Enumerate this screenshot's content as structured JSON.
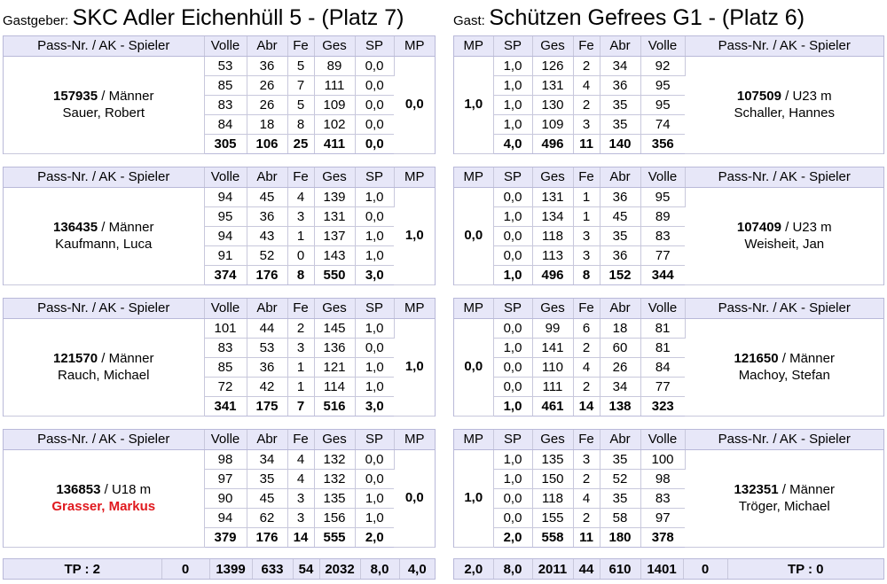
{
  "home": {
    "prefix": "Gastgeber:",
    "title": "SKC Adler Eichenhüll 5 - (Platz 7)"
  },
  "guest": {
    "prefix": "Gast:",
    "title": "Schützen Gefrees G1 - (Platz 6)"
  },
  "headers_left": [
    "Pass-Nr. / AK - Spieler",
    "Volle",
    "Abr",
    "Fe",
    "Ges",
    "SP",
    "MP"
  ],
  "headers_right": [
    "MP",
    "SP",
    "Ges",
    "Fe",
    "Abr",
    "Volle",
    "Pass-Nr. / AK - Spieler"
  ],
  "left_players": [
    {
      "pass": "157935",
      "ak": " / Männer",
      "name": "Sauer, Robert",
      "name_red": false,
      "mp": "0,0",
      "rows": [
        [
          "53",
          "36",
          "5",
          "89",
          "0,0"
        ],
        [
          "85",
          "26",
          "7",
          "111",
          "0,0"
        ],
        [
          "83",
          "26",
          "5",
          "109",
          "0,0"
        ],
        [
          "84",
          "18",
          "8",
          "102",
          "0,0"
        ]
      ],
      "sum": [
        "305",
        "106",
        "25",
        "411",
        "0,0"
      ]
    },
    {
      "pass": "136435",
      "ak": " / Männer",
      "name": "Kaufmann, Luca",
      "name_red": false,
      "mp": "1,0",
      "rows": [
        [
          "94",
          "45",
          "4",
          "139",
          "1,0"
        ],
        [
          "95",
          "36",
          "3",
          "131",
          "0,0"
        ],
        [
          "94",
          "43",
          "1",
          "137",
          "1,0"
        ],
        [
          "91",
          "52",
          "0",
          "143",
          "1,0"
        ]
      ],
      "sum": [
        "374",
        "176",
        "8",
        "550",
        "3,0"
      ]
    },
    {
      "pass": "121570",
      "ak": " / Männer",
      "name": "Rauch, Michael",
      "name_red": false,
      "mp": "1,0",
      "rows": [
        [
          "101",
          "44",
          "2",
          "145",
          "1,0"
        ],
        [
          "83",
          "53",
          "3",
          "136",
          "0,0"
        ],
        [
          "85",
          "36",
          "1",
          "121",
          "1,0"
        ],
        [
          "72",
          "42",
          "1",
          "114",
          "1,0"
        ]
      ],
      "sum": [
        "341",
        "175",
        "7",
        "516",
        "3,0"
      ]
    },
    {
      "pass": "136853",
      "ak": " / U18 m",
      "name": "Grasser, Markus",
      "name_red": true,
      "mp": "0,0",
      "rows": [
        [
          "98",
          "34",
          "4",
          "132",
          "0,0"
        ],
        [
          "97",
          "35",
          "4",
          "132",
          "0,0"
        ],
        [
          "90",
          "45",
          "3",
          "135",
          "1,0"
        ],
        [
          "94",
          "62",
          "3",
          "156",
          "1,0"
        ]
      ],
      "sum": [
        "379",
        "176",
        "14",
        "555",
        "2,0"
      ]
    }
  ],
  "right_players": [
    {
      "pass": "107509",
      "ak": " / U23 m",
      "name": "Schaller, Hannes",
      "mp": "1,0",
      "rows": [
        [
          "1,0",
          "126",
          "2",
          "34",
          "92"
        ],
        [
          "1,0",
          "131",
          "4",
          "36",
          "95"
        ],
        [
          "1,0",
          "130",
          "2",
          "35",
          "95"
        ],
        [
          "1,0",
          "109",
          "3",
          "35",
          "74"
        ]
      ],
      "sum": [
        "4,0",
        "496",
        "11",
        "140",
        "356"
      ]
    },
    {
      "pass": "107409",
      "ak": " / U23 m",
      "name": "Weisheit, Jan",
      "mp": "0,0",
      "rows": [
        [
          "0,0",
          "131",
          "1",
          "36",
          "95"
        ],
        [
          "1,0",
          "134",
          "1",
          "45",
          "89"
        ],
        [
          "0,0",
          "118",
          "3",
          "35",
          "83"
        ],
        [
          "0,0",
          "113",
          "3",
          "36",
          "77"
        ]
      ],
      "sum": [
        "1,0",
        "496",
        "8",
        "152",
        "344"
      ]
    },
    {
      "pass": "121650",
      "ak": " / Männer",
      "name": "Machoy, Stefan",
      "mp": "0,0",
      "rows": [
        [
          "0,0",
          "99",
          "6",
          "18",
          "81"
        ],
        [
          "1,0",
          "141",
          "2",
          "60",
          "81"
        ],
        [
          "0,0",
          "110",
          "4",
          "26",
          "84"
        ],
        [
          "0,0",
          "111",
          "2",
          "34",
          "77"
        ]
      ],
      "sum": [
        "1,0",
        "461",
        "14",
        "138",
        "323"
      ]
    },
    {
      "pass": "132351",
      "ak": " / Männer",
      "name": "Tröger, Michael",
      "mp": "1,0",
      "rows": [
        [
          "1,0",
          "135",
          "3",
          "35",
          "100"
        ],
        [
          "1,0",
          "150",
          "2",
          "52",
          "98"
        ],
        [
          "0,0",
          "118",
          "4",
          "35",
          "83"
        ],
        [
          "0,0",
          "155",
          "2",
          "58",
          "97"
        ]
      ],
      "sum": [
        "2,0",
        "558",
        "11",
        "180",
        "378"
      ]
    }
  ],
  "totals_left": [
    "TP : 2",
    "0",
    "1399",
    "633",
    "54",
    "2032",
    "8,0",
    "4,0"
  ],
  "totals_right": [
    "2,0",
    "8,0",
    "2011",
    "44",
    "610",
    "1401",
    "0",
    "TP : 0"
  ]
}
